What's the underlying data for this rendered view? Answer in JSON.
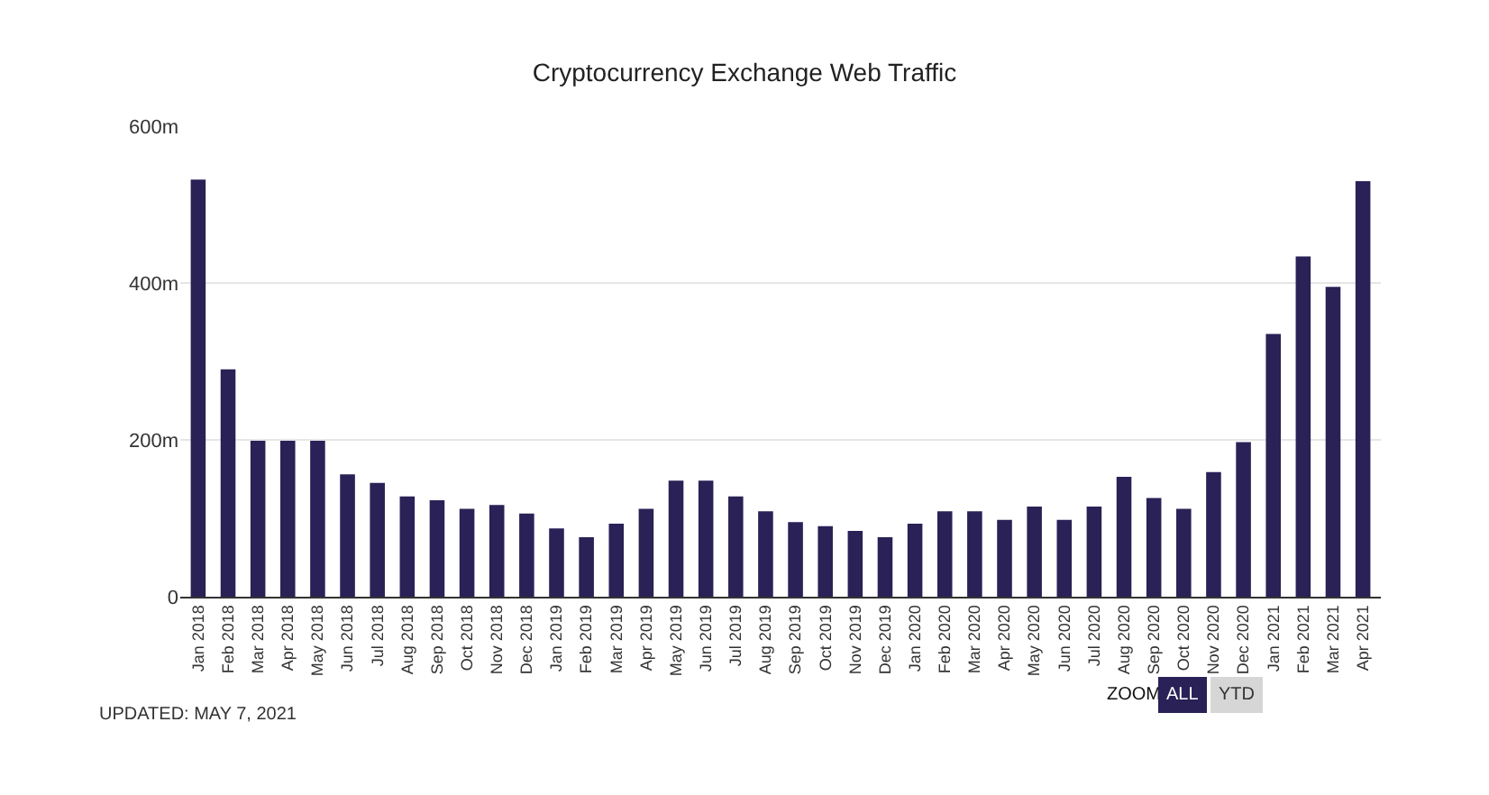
{
  "chart_data": {
    "type": "bar",
    "title": "Cryptocurrency Exchange Web Traffic",
    "categories": [
      "Jan 2018",
      "Feb 2018",
      "Mar 2018",
      "Apr 2018",
      "May 2018",
      "Jun 2018",
      "Jul 2018",
      "Aug 2018",
      "Sep 2018",
      "Oct 2018",
      "Nov 2018",
      "Dec 2018",
      "Jan 2019",
      "Feb 2019",
      "Mar 2019",
      "Apr 2019",
      "May 2019",
      "Jun 2019",
      "Jul 2019",
      "Aug 2019",
      "Sep 2019",
      "Oct 2019",
      "Nov 2019",
      "Dec 2019",
      "Jan 2020",
      "Feb 2020",
      "Mar 2020",
      "Apr 2020",
      "May 2020",
      "Jun 2020",
      "Jul 2020",
      "Aug 2020",
      "Sep 2020",
      "Oct 2020",
      "Nov 2020",
      "Dec 2020",
      "Jan 2021",
      "Feb 2021",
      "Mar 2021",
      "Apr 2021"
    ],
    "values": [
      532,
      290,
      199,
      199,
      199,
      156,
      145,
      128,
      123,
      112,
      117,
      106,
      87,
      76,
      93,
      112,
      148,
      148,
      128,
      109,
      95,
      90,
      84,
      76,
      93,
      109,
      109,
      98,
      115,
      98,
      115,
      153,
      126,
      112,
      159,
      197,
      335,
      434,
      395,
      530
    ],
    "color": "#2a2157",
    "ylim": [
      0,
      600
    ],
    "yticks": [
      0,
      {
        "value": 200,
        "label": "200m"
      },
      {
        "value": 400,
        "label": "400m"
      },
      {
        "value": 600,
        "label": "600m"
      }
    ],
    "grid": "y",
    "annotations": [
      "UPDATED: MAY 7, 2021",
      "ZOOM",
      "ALL",
      "YTD"
    ]
  }
}
